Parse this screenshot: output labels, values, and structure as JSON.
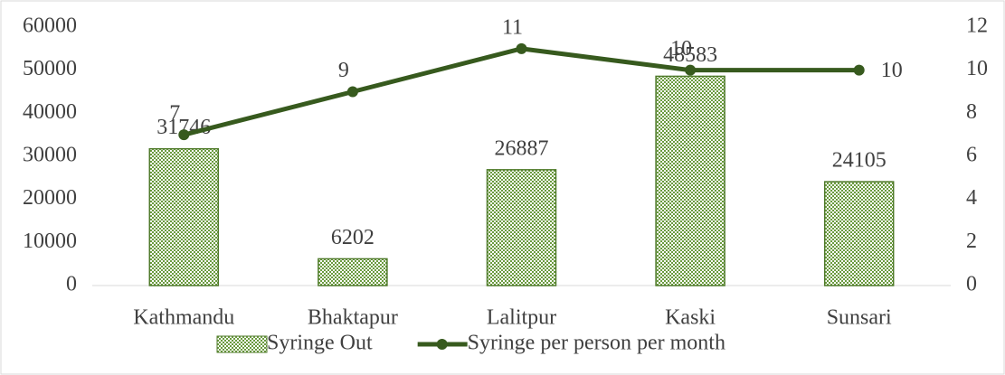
{
  "chart_data": {
    "type": "bar",
    "categories": [
      "Kathmandu",
      "Bhaktapur",
      "Lalitpur",
      "Kaski",
      "Sunsari"
    ],
    "series": [
      {
        "name": "Syringe Out",
        "color": "#4f7a2a",
        "values": [
          31746,
          6202,
          26887,
          48583,
          24105
        ]
      },
      {
        "name": "Syringe per person per month",
        "color": "#375a1e",
        "axis": "y2",
        "values": [
          7,
          9,
          11,
          10,
          10
        ]
      }
    ],
    "ylim": [
      0,
      60000
    ],
    "yticks": [
      0,
      10000,
      20000,
      30000,
      40000,
      50000,
      60000
    ],
    "y2lim": [
      0,
      12
    ],
    "y2ticks": [
      0,
      2,
      4,
      6,
      8,
      10,
      12
    ],
    "legend": "bottom"
  }
}
